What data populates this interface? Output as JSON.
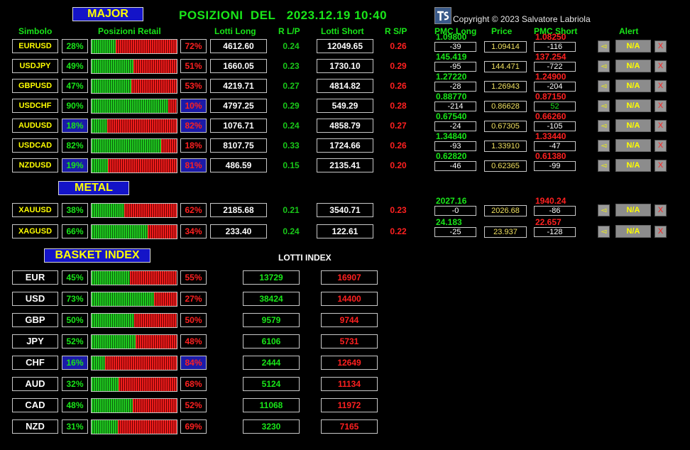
{
  "header": {
    "major_label": "MAJOR",
    "title": "POSIZIONI  DEL   2023.12.19 10:40",
    "copyright": "Copyright © 2023 Salvatore Labriola",
    "metal_label": "METAL",
    "basket_label": "BASKET INDEX",
    "lotti_index_label": "LOTTI INDEX"
  },
  "columns": {
    "simbolo": "Simbolo",
    "posizioni": "Posizioni Retail",
    "lotti_long": "Lotti Long",
    "rlp": "R L/P",
    "lotti_short": "Lotti Short",
    "rsp": "R S/P",
    "pmc_long": "PMC Long",
    "price": "Price",
    "pmc_short": "PMC Short",
    "alert": "Alert"
  },
  "colors": {
    "green": "#19e619",
    "red": "#ff2020",
    "yellow": "#ffff00",
    "header_blue": "#1414c8"
  },
  "alert_labels": {
    "na": "N/A",
    "delete": "X",
    "bell_icon": "bell-icon"
  },
  "major": [
    {
      "symbol": "EURUSD",
      "long_pct": "28%",
      "short_pct": "72%",
      "long_frac": 0.28,
      "lotti_long": "4612.60",
      "rlp": "0.24",
      "lotti_short": "12049.65",
      "rsp": "0.26",
      "pmc_long": "1.09800",
      "pmc_long_diff": "-39",
      "price": "1.09414",
      "pmc_short": "1.08250",
      "pmc_short_diff": "-116"
    },
    {
      "symbol": "USDJPY",
      "long_pct": "49%",
      "short_pct": "51%",
      "long_frac": 0.49,
      "lotti_long": "1660.05",
      "rlp": "0.23",
      "lotti_short": "1730.10",
      "rsp": "0.29",
      "pmc_long": "145.419",
      "pmc_long_diff": "-95",
      "price": "144.471",
      "pmc_short": "137.254",
      "pmc_short_diff": "-722"
    },
    {
      "symbol": "GBPUSD",
      "long_pct": "47%",
      "short_pct": "53%",
      "long_frac": 0.47,
      "lotti_long": "4219.71",
      "rlp": "0.27",
      "lotti_short": "4814.82",
      "rsp": "0.26",
      "pmc_long": "1.27220",
      "pmc_long_diff": "-28",
      "price": "1.26943",
      "pmc_short": "1.24900",
      "pmc_short_diff": "-204"
    },
    {
      "symbol": "USDCHF",
      "long_pct": "90%",
      "short_pct": "10%",
      "long_frac": 0.9,
      "lotti_long": "4797.25",
      "rlp": "0.29",
      "lotti_short": "549.29",
      "rsp": "0.28",
      "pmc_long": "0.88770",
      "pmc_long_diff": "-214",
      "price": "0.86628",
      "pmc_short": "0.87150",
      "pmc_short_diff": "52"
    },
    {
      "symbol": "AUDUSD",
      "long_pct": "18%",
      "short_pct": "82%",
      "long_frac": 0.18,
      "lotti_long": "1076.71",
      "rlp": "0.24",
      "lotti_short": "4858.79",
      "rsp": "0.27",
      "pmc_long": "0.67540",
      "pmc_long_diff": "-24",
      "price": "0.67305",
      "pmc_short": "0.66260",
      "pmc_short_diff": "-105"
    },
    {
      "symbol": "USDCAD",
      "long_pct": "82%",
      "short_pct": "18%",
      "long_frac": 0.82,
      "lotti_long": "8107.75",
      "rlp": "0.33",
      "lotti_short": "1724.66",
      "rsp": "0.26",
      "pmc_long": "1.34840",
      "pmc_long_diff": "-93",
      "price": "1.33910",
      "pmc_short": "1.33440",
      "pmc_short_diff": "-47"
    },
    {
      "symbol": "NZDUSD",
      "long_pct": "19%",
      "short_pct": "81%",
      "long_frac": 0.19,
      "lotti_long": "486.59",
      "rlp": "0.15",
      "lotti_short": "2135.41",
      "rsp": "0.20",
      "pmc_long": "0.62820",
      "pmc_long_diff": "-46",
      "price": "0.62365",
      "pmc_short": "0.61380",
      "pmc_short_diff": "-99"
    }
  ],
  "metal": [
    {
      "symbol": "XAUUSD",
      "long_pct": "38%",
      "short_pct": "62%",
      "long_frac": 0.38,
      "lotti_long": "2185.68",
      "rlp": "0.21",
      "lotti_short": "3540.71",
      "rsp": "0.23",
      "pmc_long": "2027.16",
      "pmc_long_diff": "-0",
      "price": "2026.68",
      "pmc_short": "1940.24",
      "pmc_short_diff": "-86"
    },
    {
      "symbol": "XAGUSD",
      "long_pct": "66%",
      "short_pct": "34%",
      "long_frac": 0.66,
      "lotti_long": "233.40",
      "rlp": "0.24",
      "lotti_short": "122.61",
      "rsp": "0.22",
      "pmc_long": "24.183",
      "pmc_long_diff": "-25",
      "price": "23.937",
      "pmc_short": "22.657",
      "pmc_short_diff": "-128"
    }
  ],
  "basket": [
    {
      "ccy": "EUR",
      "long_pct": "45%",
      "short_pct": "55%",
      "long_frac": 0.45,
      "lotti_long": "13729",
      "lotti_short": "16907"
    },
    {
      "ccy": "USD",
      "long_pct": "73%",
      "short_pct": "27%",
      "long_frac": 0.73,
      "lotti_long": "38424",
      "lotti_short": "14400"
    },
    {
      "ccy": "GBP",
      "long_pct": "50%",
      "short_pct": "50%",
      "long_frac": 0.5,
      "lotti_long": "9579",
      "lotti_short": "9744"
    },
    {
      "ccy": "JPY",
      "long_pct": "52%",
      "short_pct": "48%",
      "long_frac": 0.52,
      "lotti_long": "6106",
      "lotti_short": "5731"
    },
    {
      "ccy": "CHF",
      "long_pct": "16%",
      "short_pct": "84%",
      "long_frac": 0.16,
      "lotti_long": "2444",
      "lotti_short": "12649"
    },
    {
      "ccy": "AUD",
      "long_pct": "32%",
      "short_pct": "68%",
      "long_frac": 0.32,
      "lotti_long": "5124",
      "lotti_short": "11134"
    },
    {
      "ccy": "CAD",
      "long_pct": "48%",
      "short_pct": "52%",
      "long_frac": 0.48,
      "lotti_long": "11068",
      "lotti_short": "11972"
    },
    {
      "ccy": "NZD",
      "long_pct": "31%",
      "short_pct": "69%",
      "long_frac": 0.31,
      "lotti_long": "3230",
      "lotti_short": "7165"
    }
  ]
}
